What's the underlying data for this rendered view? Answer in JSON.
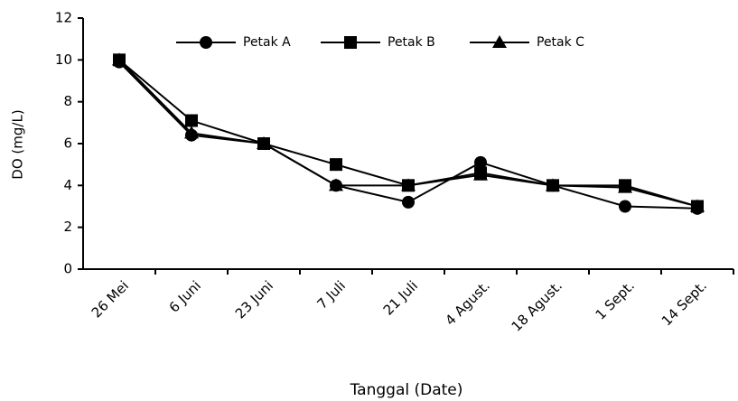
{
  "chart_data": {
    "type": "line",
    "x_label": "Tanggal (Date)",
    "y_label": "DO (mg/L)",
    "categories": [
      "26 Mei",
      "6 Juni",
      "23 Juni",
      "7 Juli",
      "21 Juli",
      "4 Agust.",
      "18 Agust.",
      "1 Sept.",
      "14 Sept."
    ],
    "series": [
      {
        "name": "Petak A",
        "color": "#000000",
        "marker": "circle",
        "values": [
          9.9,
          6.4,
          6.0,
          4.0,
          3.2,
          5.1,
          4.0,
          3.0,
          2.9
        ]
      },
      {
        "name": "Petak B",
        "color": "#000000",
        "marker": "square",
        "values": [
          10.0,
          7.1,
          6.0,
          5.0,
          4.0,
          4.6,
          4.0,
          4.0,
          3.0
        ]
      },
      {
        "name": "Petak C",
        "color": "#000000",
        "marker": "triangle",
        "values": [
          10.0,
          6.5,
          6.0,
          4.0,
          4.0,
          4.5,
          4.0,
          3.9,
          3.0
        ]
      }
    ],
    "ylim": [
      0,
      12
    ],
    "yticks": [
      0,
      2,
      4,
      6,
      8,
      10,
      12
    ],
    "grid": false,
    "legend": "top"
  }
}
